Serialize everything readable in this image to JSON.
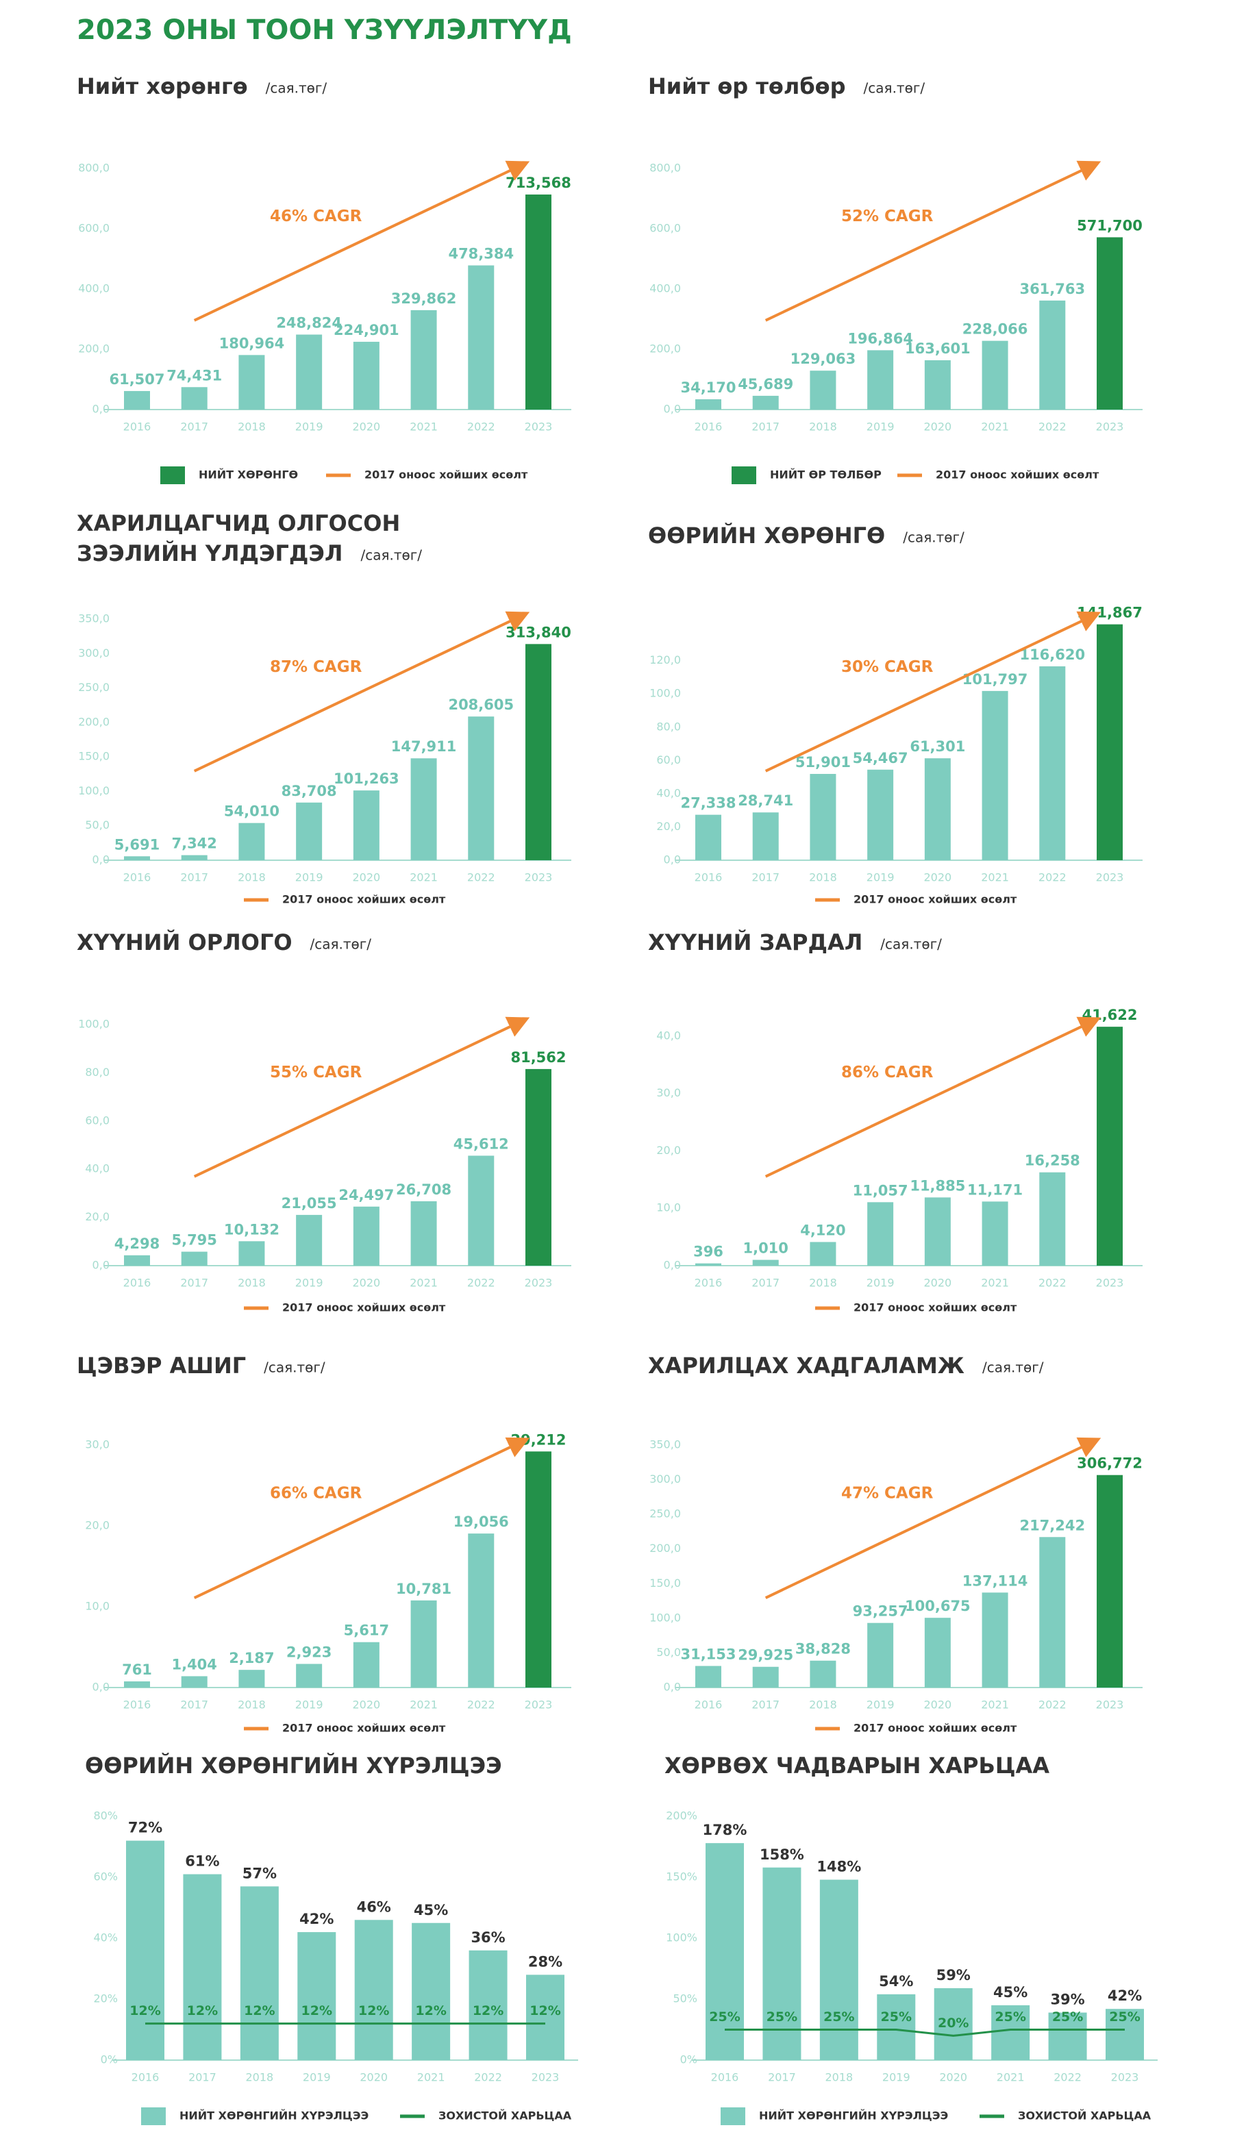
{
  "page_title": "2023 ОНЫ ТООН ҮЗҮҮЛЭЛТҮҮД",
  "chart_data": [
    {
      "type": "bar",
      "title": "Нийт хөрөнгө",
      "subtitle": "/сая.төг/",
      "categories": [
        "2016",
        "2017",
        "2018",
        "2019",
        "2020",
        "2021",
        "2022",
        "2023"
      ],
      "values": [
        61.507,
        74.431,
        180.964,
        248.824,
        224.901,
        329.862,
        478.384,
        713.568
      ],
      "value_labels": [
        "61,507",
        "74,431",
        "180,964",
        "248,824",
        "224,901",
        "329,862",
        "478,384",
        "713,568"
      ],
      "color": "#7ecdbf",
      "highlight_color": "#23914a",
      "trend_color": "#f08a35",
      "ylim": [
        0,
        800
      ],
      "yticks": [
        {
          "value": 0,
          "label": "0,0"
        },
        {
          "value": 200,
          "label": "200,0"
        },
        {
          "value": 400,
          "label": "400,0"
        },
        {
          "value": 600,
          "label": "600,0"
        },
        {
          "value": 800,
          "label": "800,0"
        }
      ],
      "annotation": "46% CAGR",
      "bar_legend": "НИЙТ ХӨРӨНГӨ",
      "trend_legend": "2017 оноос хойших өсөлт"
    },
    {
      "type": "bar",
      "title": "Нийт өр төлбөр",
      "subtitle": "/сая.төг/",
      "categories": [
        "2016",
        "2017",
        "2018",
        "2019",
        "2020",
        "2021",
        "2022",
        "2023"
      ],
      "values": [
        34.17,
        45.689,
        129.063,
        196.864,
        163.601,
        228.066,
        361.763,
        571.7
      ],
      "value_labels": [
        "34,170",
        "45,689",
        "129,063",
        "196,864",
        "163,601",
        "228,066",
        "361,763",
        "571,700"
      ],
      "color": "#7ecdbf",
      "highlight_color": "#23914a",
      "trend_color": "#f08a35",
      "ylim": [
        0,
        800
      ],
      "yticks": [
        {
          "value": 0,
          "label": "0,0"
        },
        {
          "value": 200,
          "label": "200,0"
        },
        {
          "value": 400,
          "label": "400,0"
        },
        {
          "value": 600,
          "label": "600,0"
        },
        {
          "value": 800,
          "label": "800,0"
        }
      ],
      "annotation": "52% CAGR",
      "bar_legend": "НИЙТ ӨР ТӨЛБӨР",
      "trend_legend": "2017 оноос хойших өсөлт"
    },
    {
      "type": "bar",
      "title": [
        "ХАРИЛЦАГЧИД ОЛГОСОН",
        "ЗЭЭЛИЙН ҮЛДЭГДЭЛ"
      ],
      "subtitle": "/сая.төг/",
      "categories": [
        "2016",
        "2017",
        "2018",
        "2019",
        "2020",
        "2021",
        "2022",
        "2023"
      ],
      "values": [
        5.691,
        7.342,
        54.01,
        83.708,
        101.263,
        147.911,
        208.605,
        313.84
      ],
      "value_labels": [
        "5,691",
        "7,342",
        "54,010",
        "83,708",
        "101,263",
        "147,911",
        "208,605",
        "313,840"
      ],
      "color": "#7ecdbf",
      "highlight_color": "#23914a",
      "trend_color": "#f08a35",
      "ylim": [
        0,
        350
      ],
      "yticks": [
        {
          "value": 0,
          "label": "0,0"
        },
        {
          "value": 50,
          "label": "50,0"
        },
        {
          "value": 100,
          "label": "100,0"
        },
        {
          "value": 150,
          "label": "150,0"
        },
        {
          "value": 200,
          "label": "200,0"
        },
        {
          "value": 250,
          "label": "250,0"
        },
        {
          "value": 300,
          "label": "300,0"
        },
        {
          "value": 350,
          "label": "350,0"
        }
      ],
      "annotation": "87% CAGR",
      "trend_legend": "2017 оноос хойших өсөлт"
    },
    {
      "type": "bar",
      "title": "ӨӨРИЙН ХӨРӨНГӨ",
      "subtitle": "/сая.төг/",
      "categories": [
        "2016",
        "2017",
        "2018",
        "2019",
        "2020",
        "2021",
        "2022",
        "2023"
      ],
      "values": [
        27.338,
        28.741,
        51.901,
        54.467,
        61.301,
        101.797,
        116.62,
        141.867
      ],
      "value_labels": [
        "27,338",
        "28,741",
        "51,901",
        "54,467",
        "61,301",
        "101,797",
        "116,620",
        "141,867"
      ],
      "color": "#7ecdbf",
      "highlight_color": "#23914a",
      "trend_color": "#f08a35",
      "ylim": [
        0,
        145
      ],
      "yticks": [
        {
          "value": 0,
          "label": "0,0"
        },
        {
          "value": 20,
          "label": "20,0"
        },
        {
          "value": 40,
          "label": "40,0"
        },
        {
          "value": 60,
          "label": "60,0"
        },
        {
          "value": 80,
          "label": "80,0"
        },
        {
          "value": 100,
          "label": "100,0"
        },
        {
          "value": 120,
          "label": "120,0"
        }
      ],
      "annotation": "30% CAGR",
      "trend_legend": "2017 оноос хойших өсөлт"
    },
    {
      "type": "bar",
      "title": "ХҮҮНИЙ ОРЛОГО",
      "subtitle": "/сая.төг/",
      "categories": [
        "2016",
        "2017",
        "2018",
        "2019",
        "2020",
        "2021",
        "2022",
        "2023"
      ],
      "values": [
        4.298,
        5.795,
        10.132,
        21.055,
        24.497,
        26.708,
        45.612,
        81.562
      ],
      "value_labels": [
        "4,298",
        "5,795",
        "10,132",
        "21,055",
        "24,497",
        "26,708",
        "45,612",
        "81,562"
      ],
      "color": "#7ecdbf",
      "highlight_color": "#23914a",
      "trend_color": "#f08a35",
      "ylim": [
        0,
        100
      ],
      "yticks": [
        {
          "value": 0,
          "label": "0,0"
        },
        {
          "value": 20,
          "label": "20,0"
        },
        {
          "value": 40,
          "label": "40,0"
        },
        {
          "value": 60,
          "label": "60,0"
        },
        {
          "value": 80,
          "label": "80,0"
        },
        {
          "value": 100,
          "label": "100,0"
        }
      ],
      "annotation": "55% CAGR",
      "trend_legend": "2017 оноос хойших өсөлт"
    },
    {
      "type": "bar",
      "title": "ХҮҮНИЙ ЗАРДАЛ",
      "subtitle": "/сая.төг/",
      "categories": [
        "2016",
        "2017",
        "2018",
        "2019",
        "2020",
        "2021",
        "2022",
        "2023"
      ],
      "values": [
        0.396,
        1.01,
        4.12,
        11.057,
        11.885,
        11.171,
        16.258,
        41.622
      ],
      "value_labels": [
        "396",
        "1,010",
        "4,120",
        "11,057",
        "11,885",
        "11,171",
        "16,258",
        "41,622"
      ],
      "color": "#7ecdbf",
      "highlight_color": "#23914a",
      "trend_color": "#f08a35",
      "ylim": [
        0,
        42
      ],
      "yticks": [
        {
          "value": 0,
          "label": "0,0"
        },
        {
          "value": 10,
          "label": "10,0"
        },
        {
          "value": 20,
          "label": "20,0"
        },
        {
          "value": 30,
          "label": "30,0"
        },
        {
          "value": 40,
          "label": "40,0"
        }
      ],
      "annotation": "86% CAGR",
      "trend_legend": "2017 оноос хойших өсөлт"
    },
    {
      "type": "bar",
      "title": "ЦЭВЭР АШИГ",
      "subtitle": "/сая.төг/",
      "categories": [
        "2016",
        "2017",
        "2018",
        "2019",
        "2020",
        "2021",
        "2022",
        "2023"
      ],
      "values": [
        0.761,
        1.404,
        2.187,
        2.923,
        5.617,
        10.781,
        19.056,
        29.212
      ],
      "value_labels": [
        "761",
        "1,404",
        "2,187",
        "2,923",
        "5,617",
        "10,781",
        "19,056",
        "29,212"
      ],
      "color": "#7ecdbf",
      "highlight_color": "#23914a",
      "trend_color": "#f08a35",
      "ylim": [
        0,
        30
      ],
      "yticks": [
        {
          "value": 0,
          "label": "0,0"
        },
        {
          "value": 10,
          "label": "10,0"
        },
        {
          "value": 20,
          "label": "20,0"
        },
        {
          "value": 30,
          "label": "30,0"
        }
      ],
      "annotation": "66% CAGR",
      "trend_legend": "2017 оноос хойших өсөлт"
    },
    {
      "type": "bar",
      "title": "ХАРИЛЦАХ ХАДГАЛАМЖ",
      "subtitle": "/сая.төг/",
      "categories": [
        "2016",
        "2017",
        "2018",
        "2019",
        "2020",
        "2021",
        "2022",
        "2023"
      ],
      "values": [
        31.153,
        29.925,
        38.828,
        93.257,
        100.675,
        137.114,
        217.242,
        306.772
      ],
      "value_labels": [
        "31,153",
        "29,925",
        "38,828",
        "93,257",
        "100,675",
        "137,114",
        "217,242",
        "306,772"
      ],
      "color": "#7ecdbf",
      "highlight_color": "#23914a",
      "trend_color": "#f08a35",
      "ylim": [
        0,
        350
      ],
      "yticks": [
        {
          "value": 0,
          "label": "0,0"
        },
        {
          "value": 50,
          "label": "50,0"
        },
        {
          "value": 100,
          "label": "100,0"
        },
        {
          "value": 150,
          "label": "150,0"
        },
        {
          "value": 200,
          "label": "200,0"
        },
        {
          "value": 250,
          "label": "250,0"
        },
        {
          "value": 300,
          "label": "300,0"
        },
        {
          "value": 350,
          "label": "350,0"
        }
      ],
      "annotation": "47% CAGR",
      "trend_legend": "2017 оноос хойших өсөлт"
    },
    {
      "type": "bar_line",
      "title": "ӨӨРИЙН ХӨРӨНГИЙН ХҮРЭЛЦЭЭ",
      "categories": [
        "2016",
        "2017",
        "2018",
        "2019",
        "2020",
        "2021",
        "2022",
        "2023"
      ],
      "series": [
        {
          "name": "НИЙТ ХӨРӨНГИЙН ХҮРЭЛЦЭЭ",
          "type": "bar",
          "color": "#7ecdbf",
          "values": [
            72,
            61,
            57,
            42,
            46,
            45,
            36,
            28
          ],
          "value_labels": [
            "72%",
            "61%",
            "57%",
            "42%",
            "46%",
            "45%",
            "36%",
            "28%"
          ]
        },
        {
          "name": "ЗОХИСТОЙ ХАРЬЦАА",
          "type": "line",
          "color": "#23914a",
          "values": [
            12,
            12,
            12,
            12,
            12,
            12,
            12,
            12
          ],
          "value_labels": [
            "12%",
            "12%",
            "12%",
            "12%",
            "12%",
            "12%",
            "12%",
            "12%"
          ]
        }
      ],
      "ylim": [
        0,
        80
      ],
      "yticks": [
        {
          "value": 0,
          "label": "0%"
        },
        {
          "value": 20,
          "label": "20%"
        },
        {
          "value": 40,
          "label": "40%"
        },
        {
          "value": 60,
          "label": "60%"
        },
        {
          "value": 80,
          "label": "80%"
        }
      ]
    },
    {
      "type": "bar_line",
      "title": "ХӨРВӨХ ЧАДВАРЫН ХАРЬЦАА",
      "categories": [
        "2016",
        "2017",
        "2018",
        "2019",
        "2020",
        "2021",
        "2022",
        "2023"
      ],
      "series": [
        {
          "name": "НИЙТ ХӨРӨНГИЙН ХҮРЭЛЦЭЭ",
          "type": "bar",
          "color": "#7ecdbf",
          "values": [
            178,
            158,
            148,
            54,
            59,
            45,
            39,
            42
          ],
          "value_labels": [
            "178%",
            "158%",
            "148%",
            "54%",
            "59%",
            "45%",
            "39%",
            "42%"
          ]
        },
        {
          "name": "ЗОХИСТОЙ ХАРЬЦАА",
          "type": "line",
          "color": "#23914a",
          "values": [
            25,
            25,
            25,
            25,
            20,
            25,
            25,
            25
          ],
          "value_labels": [
            "25%",
            "25%",
            "25%",
            "25%",
            "20%",
            "25%",
            "25%",
            "25%"
          ]
        }
      ],
      "ylim": [
        0,
        200
      ],
      "yticks": [
        {
          "value": 0,
          "label": "0%"
        },
        {
          "value": 50,
          "label": "50%"
        },
        {
          "value": 100,
          "label": "100%"
        },
        {
          "value": 150,
          "label": "150%"
        },
        {
          "value": 200,
          "label": "200%"
        }
      ]
    }
  ]
}
